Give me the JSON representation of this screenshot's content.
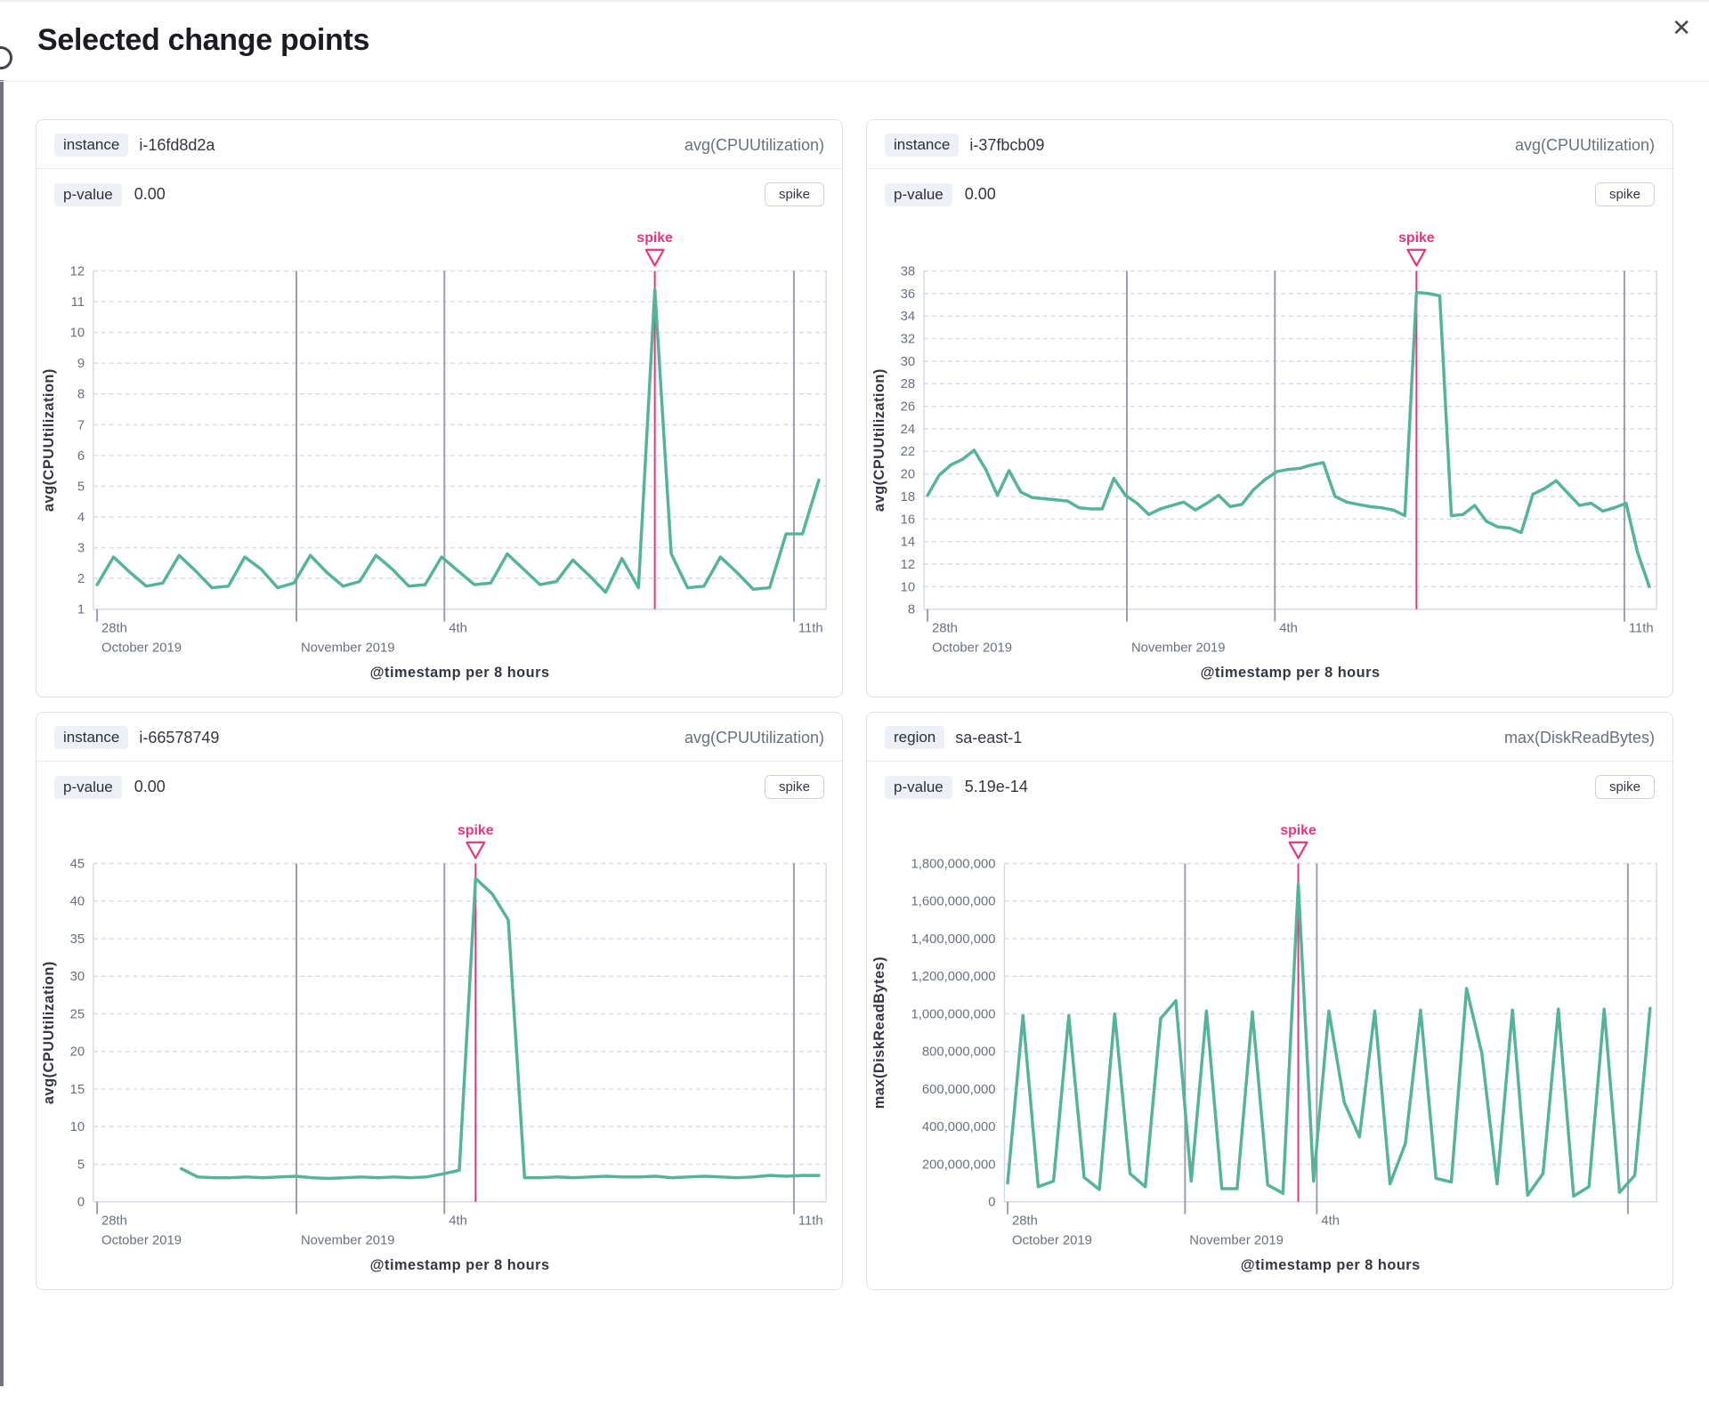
{
  "modal": {
    "title": "Selected change points",
    "close_glyph": "✕"
  },
  "colors": {
    "series_green": "#54B399",
    "annotation_pink": "#E5357E",
    "grid_dashed": "#D9DCE8",
    "grid_major": "#98A0AE",
    "axis_line": "#D3DAE6",
    "tick_text": "#69707D",
    "axis_title_text": "#343741"
  },
  "cards": [
    {
      "field_label": "instance",
      "field_value": "i-16fd8d2a",
      "metric": "avg(CPUUtilization)",
      "p_label": "p-value",
      "p_value": "0.00",
      "change_type": "spike"
    },
    {
      "field_label": "instance",
      "field_value": "i-37fbcb09",
      "metric": "avg(CPUUtilization)",
      "p_label": "p-value",
      "p_value": "0.00",
      "change_type": "spike"
    },
    {
      "field_label": "instance",
      "field_value": "i-66578749",
      "metric": "avg(CPUUtilization)",
      "p_label": "p-value",
      "p_value": "0.00",
      "change_type": "spike"
    },
    {
      "field_label": "region",
      "field_value": "sa-east-1",
      "metric": "max(DiskReadBytes)",
      "p_label": "p-value",
      "p_value": "5.19e-14",
      "change_type": "spike"
    }
  ],
  "chart_data": [
    {
      "type": "line",
      "title": "instance i-16fd8d2a",
      "ylabel": "avg(CPUUtilization)",
      "xlabel": "@timestamp per 8 hours",
      "ylim": [
        1,
        12
      ],
      "ytick_step": 1,
      "grid": true,
      "legend": false,
      "annotation_label": "spike",
      "x_start": 0.005,
      "x_end": 0.99,
      "xticks": [
        {
          "pos": 0.005,
          "label": "28th",
          "sublabel": "October 2019",
          "grid": "minor"
        },
        {
          "pos": 0.277,
          "label": "",
          "sublabel": "November 2019",
          "grid": "major"
        },
        {
          "pos": 0.479,
          "label": "4th",
          "sublabel": "",
          "grid": "major"
        },
        {
          "pos": 0.956,
          "label": "11th",
          "sublabel": "",
          "grid": "major"
        }
      ],
      "values": [
        1.8,
        2.7,
        2.2,
        1.75,
        1.85,
        2.75,
        2.25,
        1.7,
        1.75,
        2.7,
        2.3,
        1.7,
        1.85,
        2.75,
        2.2,
        1.75,
        1.9,
        2.75,
        2.3,
        1.75,
        1.8,
        2.7,
        2.25,
        1.8,
        1.85,
        2.8,
        2.3,
        1.8,
        1.9,
        2.6,
        2.1,
        1.55,
        2.65,
        1.7,
        11.4,
        2.8,
        1.7,
        1.75,
        2.7,
        2.2,
        1.65,
        1.7,
        3.45,
        3.45,
        5.2
      ]
    },
    {
      "type": "line",
      "title": "instance i-37fbcb09",
      "ylabel": "avg(CPUUtilization)",
      "xlabel": "@timestamp per 8 hours",
      "ylim": [
        8,
        38
      ],
      "ytick_step": 2,
      "grid": true,
      "legend": false,
      "annotation_label": "spike",
      "x_start": 0.005,
      "x_end": 0.99,
      "xticks": [
        {
          "pos": 0.005,
          "label": "28th",
          "sublabel": "October 2019",
          "grid": "minor"
        },
        {
          "pos": 0.277,
          "label": "",
          "sublabel": "November 2019",
          "grid": "major"
        },
        {
          "pos": 0.479,
          "label": "4th",
          "sublabel": "",
          "grid": "major"
        },
        {
          "pos": 0.956,
          "label": "11th",
          "sublabel": "",
          "grid": "major"
        }
      ],
      "values": [
        18.1,
        19.9,
        20.8,
        21.3,
        22.1,
        20.4,
        18.1,
        20.3,
        18.4,
        17.9,
        17.8,
        17.7,
        17.6,
        17.0,
        16.9,
        16.9,
        19.6,
        18.1,
        17.4,
        16.4,
        16.9,
        17.2,
        17.5,
        16.8,
        17.4,
        18.1,
        17.1,
        17.3,
        18.6,
        19.5,
        20.2,
        20.4,
        20.5,
        20.8,
        21.0,
        18.0,
        17.5,
        17.3,
        17.1,
        17.0,
        16.8,
        16.3,
        36.1,
        36.0,
        35.8,
        16.3,
        16.4,
        17.2,
        15.8,
        15.3,
        15.2,
        14.8,
        18.2,
        18.7,
        19.4,
        18.3,
        17.2,
        17.4,
        16.7,
        17.0,
        17.4,
        13.0,
        10.0
      ]
    },
    {
      "type": "line",
      "title": "instance i-66578749",
      "ylabel": "avg(CPUUtilization)",
      "xlabel": "@timestamp per 8 hours",
      "ylim": [
        0,
        45
      ],
      "ytick_step": 5,
      "grid": true,
      "legend": false,
      "annotation_label": "spike",
      "x_start": 0.12,
      "x_end": 0.99,
      "xticks": [
        {
          "pos": 0.005,
          "label": "28th",
          "sublabel": "October 2019",
          "grid": "minor"
        },
        {
          "pos": 0.277,
          "label": "",
          "sublabel": "November 2019",
          "grid": "major"
        },
        {
          "pos": 0.479,
          "label": "4th",
          "sublabel": "",
          "grid": "major"
        },
        {
          "pos": 0.956,
          "label": "11th",
          "sublabel": "",
          "grid": "major"
        }
      ],
      "values": [
        4.4,
        3.3,
        3.2,
        3.2,
        3.3,
        3.2,
        3.3,
        3.4,
        3.2,
        3.1,
        3.2,
        3.3,
        3.2,
        3.3,
        3.2,
        3.3,
        3.7,
        4.2,
        43.0,
        41.0,
        37.5,
        3.2,
        3.2,
        3.3,
        3.2,
        3.3,
        3.4,
        3.3,
        3.3,
        3.4,
        3.2,
        3.3,
        3.4,
        3.3,
        3.2,
        3.3,
        3.5,
        3.4,
        3.5,
        3.5
      ]
    },
    {
      "type": "line",
      "title": "region sa-east-1",
      "ylabel": "max(DiskReadBytes)",
      "xlabel": "@timestamp per 8 hours",
      "ylim": [
        0,
        1800000000
      ],
      "ytick_step": 200000000,
      "grid": true,
      "legend": false,
      "annotation_label": "spike",
      "x_start": 0.005,
      "x_end": 0.99,
      "xticks": [
        {
          "pos": 0.005,
          "label": "28th",
          "sublabel": "October 2019",
          "grid": "minor"
        },
        {
          "pos": 0.277,
          "label": "",
          "sublabel": "November 2019",
          "grid": "major"
        },
        {
          "pos": 0.479,
          "label": "4th",
          "sublabel": "",
          "grid": "major"
        },
        {
          "pos": 0.956,
          "label": "",
          "sublabel": "",
          "grid": "major"
        }
      ],
      "values": [
        100000000,
        990000000,
        80000000,
        110000000,
        990000000,
        130000000,
        65000000,
        1000000000,
        150000000,
        80000000,
        975000000,
        1070000000,
        110000000,
        1015000000,
        70000000,
        70000000,
        1010000000,
        90000000,
        45000000,
        1690000000,
        110000000,
        1015000000,
        530000000,
        345000000,
        1015000000,
        95000000,
        310000000,
        1020000000,
        125000000,
        105000000,
        1135000000,
        790000000,
        95000000,
        1020000000,
        35000000,
        150000000,
        1025000000,
        30000000,
        80000000,
        1025000000,
        50000000,
        140000000,
        1030000000
      ]
    }
  ]
}
